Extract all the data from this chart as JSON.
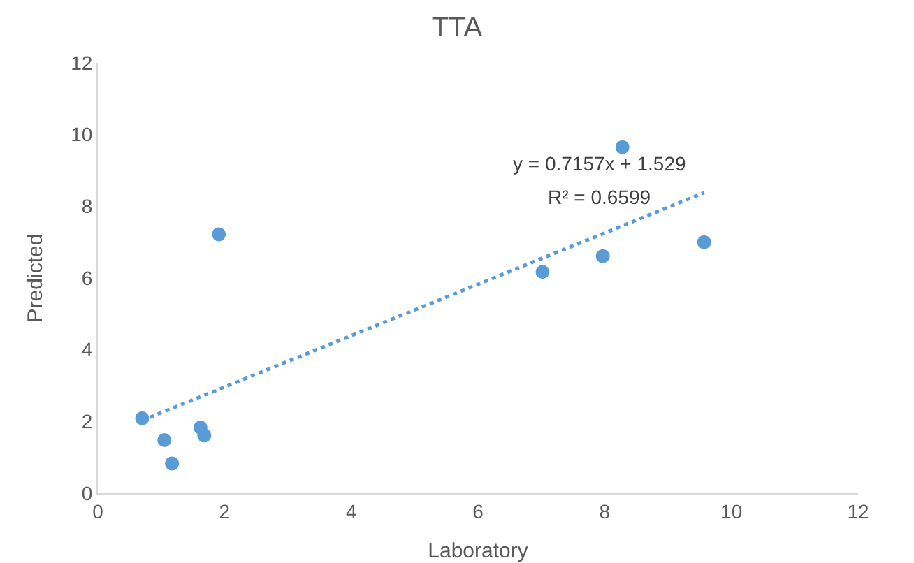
{
  "chart_data": {
    "type": "scatter",
    "title": "TTA",
    "xlabel": "Laboratory",
    "ylabel": "Predicted",
    "xlim": [
      0,
      12
    ],
    "xticks": [
      0,
      2,
      4,
      6,
      8,
      10,
      12
    ],
    "ylim": [
      0,
      12
    ],
    "yticks": [
      0,
      2,
      4,
      6,
      8,
      10,
      12
    ],
    "grid": false,
    "series": [
      {
        "marker": "circle",
        "color": "#5b9bd5",
        "x": [
          0.7,
          1.05,
          1.17,
          1.62,
          1.68,
          1.91,
          7.02,
          7.97,
          8.28,
          9.57
        ],
        "values": [
          2.09,
          1.48,
          0.83,
          1.83,
          1.61,
          7.22,
          6.17,
          6.61,
          9.65,
          7.0
        ]
      },
      {
        "type": "line",
        "color": "#5b9bd5",
        "line_style": "dotted",
        "x": [
          0.7,
          9.57
        ],
        "values": [
          2.03,
          8.38
        ]
      }
    ],
    "annotations": [
      "y = 0.7157x + 1.529",
      "R² = 0.6599"
    ]
  }
}
